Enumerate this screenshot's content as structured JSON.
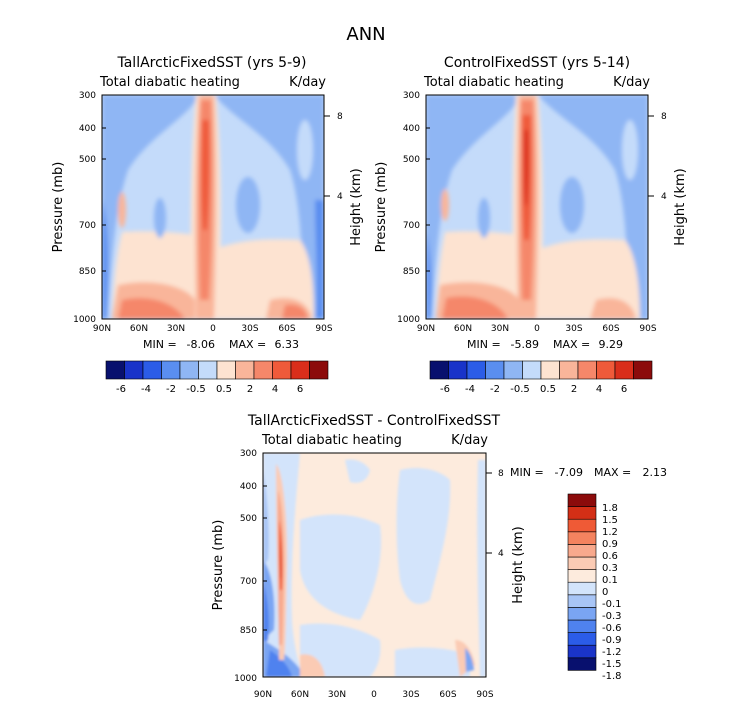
{
  "figure": {
    "main_title": "ANN",
    "colors": {
      "diverging_12": [
        "#08106e",
        "#1933c9",
        "#2b5ce8",
        "#5a8ef0",
        "#8fb6f4",
        "#c4dbfa",
        "#fde3d1",
        "#f9b59a",
        "#f5876a",
        "#ef5a3a",
        "#d92e1b",
        "#8c0b0b"
      ],
      "diff_14": [
        "#08106e",
        "#1a34c8",
        "#2b5ce8",
        "#4f82ef",
        "#7aa5f3",
        "#a8c5f6",
        "#d3e4fb",
        "#fdebdd",
        "#fbcbb4",
        "#f8a98d",
        "#f4835f",
        "#ef5a36",
        "#d42f16",
        "#8c0b0b"
      ]
    }
  },
  "chart_data": [
    {
      "type": "heatmap",
      "title": "TallArcticFixedSST (yrs 5-9)",
      "subtitle_left": "Total diabatic heating",
      "subtitle_right": "K/day",
      "ylabel": "Pressure (mb)",
      "ylabel_right": "Height (km)",
      "x_ticks": [
        "90N",
        "60N",
        "30N",
        "0",
        "30S",
        "60S",
        "90S"
      ],
      "y_ticks": [
        "300",
        "400",
        "500",
        "700",
        "850",
        "1000"
      ],
      "y_tick_values": [
        300,
        400,
        500,
        700,
        850,
        1000
      ],
      "height_ticks": [
        "8",
        "4"
      ],
      "height_tick_values": [
        8,
        4
      ],
      "xlim": [
        90,
        -90
      ],
      "ylim": [
        1000,
        300
      ],
      "min_label": "MIN =",
      "min_value": "-8.06",
      "max_label": "MAX =",
      "max_value": "6.33",
      "colorbar_labels": [
        "-6",
        "-4",
        "-2",
        "-0.5",
        "0.5",
        "2",
        "4",
        "6"
      ],
      "colorbar_levels": [
        -6,
        -5,
        -4,
        -3,
        -2,
        -1,
        -0.5,
        0.5,
        1,
        2,
        3,
        4,
        5,
        6
      ]
    },
    {
      "type": "heatmap",
      "title": "ControlFixedSST (yrs 5-14)",
      "subtitle_left": "Total diabatic heating",
      "subtitle_right": "K/day",
      "ylabel": "Pressure (mb)",
      "ylabel_right": "Height (km)",
      "x_ticks": [
        "90N",
        "60N",
        "30N",
        "0",
        "30S",
        "60S",
        "90S"
      ],
      "y_ticks": [
        "300",
        "400",
        "500",
        "700",
        "850",
        "1000"
      ],
      "y_tick_values": [
        300,
        400,
        500,
        700,
        850,
        1000
      ],
      "height_ticks": [
        "8",
        "4"
      ],
      "height_tick_values": [
        8,
        4
      ],
      "xlim": [
        90,
        -90
      ],
      "ylim": [
        1000,
        300
      ],
      "min_label": "MIN =",
      "min_value": "-5.89",
      "max_label": "MAX =",
      "max_value": "9.29",
      "colorbar_labels": [
        "-6",
        "-4",
        "-2",
        "-0.5",
        "0.5",
        "2",
        "4",
        "6"
      ],
      "colorbar_levels": [
        -6,
        -5,
        -4,
        -3,
        -2,
        -1,
        -0.5,
        0.5,
        1,
        2,
        3,
        4,
        5,
        6
      ]
    },
    {
      "type": "heatmap",
      "title": "TallArcticFixedSST - ControlFixedSST",
      "subtitle_left": "Total diabatic heating",
      "subtitle_right": "K/day",
      "ylabel": "Pressure (mb)",
      "ylabel_right": "Height (km)",
      "x_ticks": [
        "90N",
        "60N",
        "30N",
        "0",
        "30S",
        "60S",
        "90S"
      ],
      "y_ticks": [
        "300",
        "400",
        "500",
        "700",
        "850",
        "1000"
      ],
      "y_tick_values": [
        300,
        400,
        500,
        700,
        850,
        1000
      ],
      "height_ticks": [
        "8",
        "4"
      ],
      "height_tick_values": [
        8,
        4
      ],
      "xlim": [
        90,
        -90
      ],
      "ylim": [
        1000,
        300
      ],
      "min_label": "MIN =",
      "min_value": "-7.09",
      "max_label": "MAX =",
      "max_value": "2.13",
      "colorbar_labels": [
        "1.8",
        "1.5",
        "1.2",
        "0.9",
        "0.6",
        "0.3",
        "0.1",
        "0",
        "-0.1",
        "-0.3",
        "-0.6",
        "-0.9",
        "-1.2",
        "-1.5",
        "-1.8"
      ],
      "colorbar_levels": [
        -1.8,
        -1.5,
        -1.2,
        -0.9,
        -0.6,
        -0.3,
        -0.1,
        0,
        0.1,
        0.3,
        0.6,
        0.9,
        1.2,
        1.5,
        1.8
      ]
    }
  ]
}
